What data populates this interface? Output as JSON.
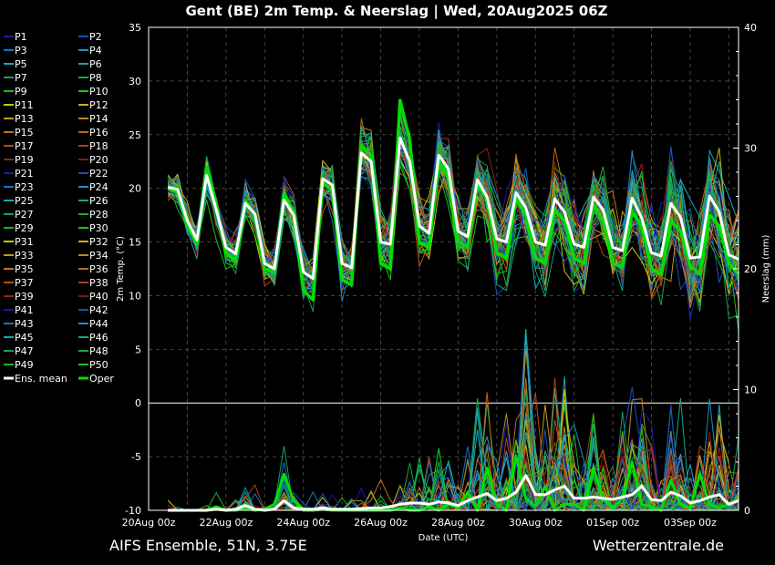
{
  "chart_data": {
    "type": "line",
    "title": "Gent  (BE)  2m Temp. & Neerslag | Wed, 20Aug2025 06Z",
    "footer_left": "AIFS Ensemble, 51N, 3.75E",
    "footer_right": "Wetterzentrale.de",
    "xlabel": "Date (UTC)",
    "ylabel_left": "2m Temp. (°C)",
    "ylabel_right": "Neerslag (mm)",
    "ylim_left": [
      -10,
      35
    ],
    "ylim_right": [
      0,
      40
    ],
    "yticks_left": [
      "35",
      "30",
      "25",
      "20",
      "15",
      "10",
      "5",
      "0",
      "-5",
      "-10"
    ],
    "yticks_right": [
      "40",
      "30",
      "20",
      "10",
      "0"
    ],
    "x_range_days": [
      0,
      15.25
    ],
    "x_start_day": 0.5,
    "x_step_hours": 6,
    "xticks": [
      "20Aug 00z",
      "22Aug 00z",
      "24Aug 00z",
      "26Aug 00z",
      "28Aug 00z",
      "30Aug 00z",
      "01Sep 00z",
      "03Sep 00z"
    ],
    "grid": true,
    "member_colors": [
      "#1a1aa8",
      "#1a50b8",
      "#1a70c0",
      "#1a90c8",
      "#18a8b8",
      "#18a888",
      "#18a060",
      "#18a840",
      "#18b828",
      "#10c818",
      "#c8c818",
      "#c8b018",
      "#c09c18",
      "#c08818",
      "#c07418",
      "#c06818",
      "#b85010",
      "#a84020",
      "#982020",
      "#801818"
    ],
    "series_labels": [
      "P1",
      "P2",
      "P3",
      "P4",
      "P5",
      "P6",
      "P7",
      "P8",
      "P9",
      "P10",
      "P11",
      "P12",
      "P13",
      "P14",
      "P15",
      "P16",
      "P17",
      "P18",
      "P19",
      "P20",
      "P21",
      "P22",
      "P23",
      "P24",
      "P25",
      "P26",
      "P27",
      "P28",
      "P29",
      "P30",
      "P31",
      "P32",
      "P33",
      "P34",
      "P35",
      "P36",
      "P37",
      "P38",
      "P39",
      "P40",
      "P41",
      "P42",
      "P43",
      "P44",
      "P45",
      "P46",
      "P47",
      "P48",
      "P49",
      "P50",
      "Ens. mean",
      "Oper"
    ],
    "mean_color": "#ffffff",
    "oper_color": "#00e000",
    "temp_spread": [
      0.8,
      3.0
    ],
    "ens_mean_temp": [
      20.1,
      19.9,
      17.0,
      15.2,
      21.2,
      18.0,
      14.5,
      13.9,
      18.6,
      17.6,
      13.0,
      12.5,
      18.9,
      17.5,
      12.2,
      11.6,
      20.9,
      20.3,
      13.0,
      12.6,
      23.3,
      22.5,
      15.0,
      14.8,
      24.7,
      22.5,
      16.5,
      15.8,
      23.1,
      21.8,
      16.0,
      15.5,
      20.8,
      19.2,
      15.3,
      15.0,
      19.6,
      18.2,
      15.0,
      14.7,
      19.0,
      17.8,
      14.8,
      14.5,
      19.2,
      18.0,
      14.5,
      14.2,
      19.1,
      17.2,
      14.0,
      13.7,
      18.6,
      17.3,
      13.5,
      13.6,
      19.3,
      17.8,
      13.8,
      13.4
    ],
    "oper_temp": [
      20.0,
      19.6,
      16.5,
      14.8,
      22.0,
      18.5,
      14.0,
      13.2,
      18.9,
      17.5,
      12.5,
      12.2,
      19.5,
      17.8,
      10.5,
      9.6,
      20.5,
      19.8,
      11.5,
      11.0,
      24.0,
      23.0,
      13.0,
      12.5,
      28.2,
      24.5,
      15.0,
      14.5,
      22.5,
      21.0,
      15.0,
      14.5,
      20.3,
      19.0,
      14.0,
      13.5,
      19.0,
      17.5,
      13.5,
      13.0,
      18.0,
      17.0,
      13.5,
      13.0,
      18.5,
      17.0,
      13.0,
      12.7,
      17.8,
      16.5,
      12.5,
      12.0,
      17.0,
      16.0,
      12.8,
      12.0,
      17.5,
      16.5,
      13.0,
      12.0
    ],
    "ens_mean_precip": [
      0,
      0,
      0,
      0,
      0,
      0.1,
      0,
      0.1,
      0.4,
      0.1,
      0,
      0.1,
      0.8,
      0.2,
      0.1,
      0.1,
      0.2,
      0.1,
      0.1,
      0.1,
      0.15,
      0.2,
      0.2,
      0.3,
      0.5,
      0.6,
      0.6,
      0.5,
      0.7,
      0.6,
      0.4,
      0.8,
      1.1,
      1.4,
      0.8,
      1.0,
      1.5,
      2.9,
      1.3,
      1.3,
      1.7,
      2.0,
      1.0,
      1.0,
      1.1,
      1.0,
      0.9,
      1.1,
      1.3,
      2.0,
      0.9,
      0.8,
      1.5,
      1.2,
      0.6,
      0.8,
      1.1,
      1.3,
      0.5,
      0.8
    ],
    "oper_precip": [
      0,
      0,
      0,
      0,
      0,
      0.3,
      0,
      0,
      0.2,
      0,
      0.1,
      0.5,
      3.0,
      0.8,
      0,
      0,
      0.1,
      0,
      0,
      0,
      0,
      0,
      0,
      0,
      0.2,
      0,
      0,
      0.3,
      0,
      0.5,
      0.2,
      1.5,
      0,
      3.5,
      0.5,
      0,
      4.5,
      1.0,
      0.3,
      2.0,
      0,
      0.5,
      0.5,
      0,
      3.5,
      1.0,
      0.2,
      1.0,
      4.0,
      0.5,
      0.3,
      0,
      2.5,
      0.5,
      0.2,
      3.0,
      0.5,
      0.2,
      0.5,
      1.0
    ]
  }
}
